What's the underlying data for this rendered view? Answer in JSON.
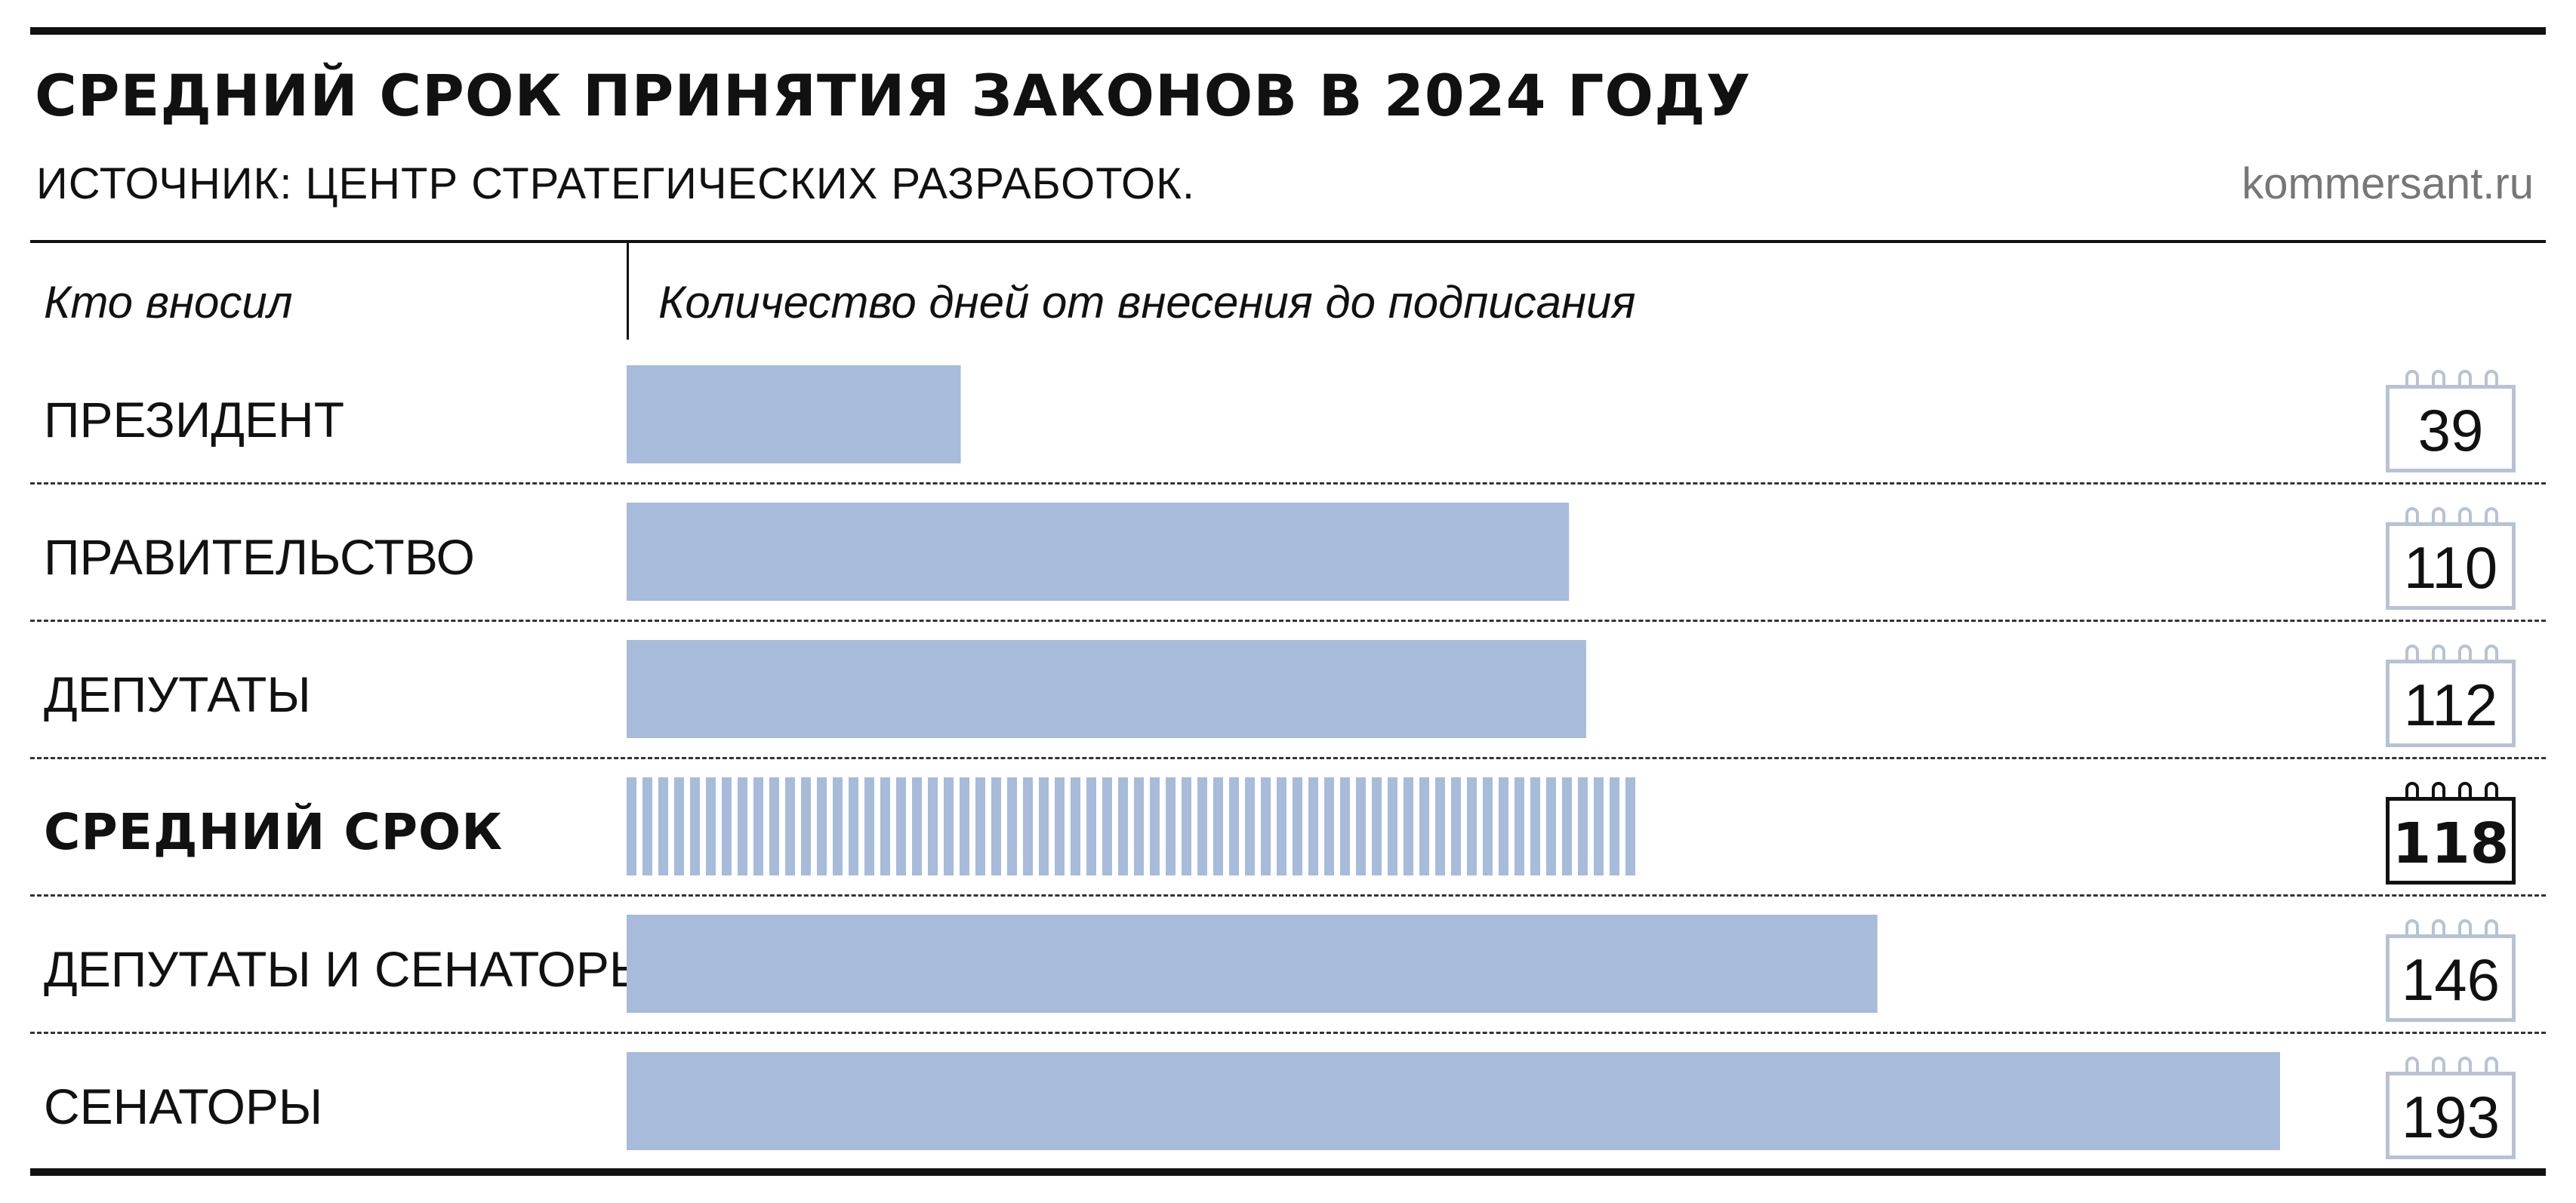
{
  "header": {
    "title": "СРЕДНИЙ СРОК ПРИНЯТИЯ ЗАКОНОВ В 2024 ГОДУ",
    "source": "ИСТОЧНИК: ЦЕНТР СТРАТЕГИЧЕСКИХ РАЗРАБОТОК.",
    "site": "kommersant.ru"
  },
  "columns": {
    "who": "Кто вносил",
    "days": "Количество дней от внесения до подписания"
  },
  "colors": {
    "bar": "#a7bbda",
    "text": "#111111",
    "calendar_border": "#b7c3d3"
  },
  "chart_data": {
    "type": "bar",
    "orientation": "horizontal",
    "title": "СРЕДНИЙ СРОК ПРИНЯТИЯ ЗАКОНОВ В 2024 ГОДУ",
    "xlabel": "Количество дней от внесения до подписания",
    "ylabel": "Кто вносил",
    "categories": [
      "ПРЕЗИДЕНТ",
      "ПРАВИТЕЛЬСТВО",
      "ДЕПУТАТЫ",
      "СРЕДНИЙ СРОК",
      "ДЕПУТАТЫ И СЕНАТОРЫ",
      "СЕНАТОРЫ"
    ],
    "values": [
      39,
      110,
      112,
      118,
      146,
      193
    ],
    "highlight": [
      false,
      false,
      false,
      true,
      false,
      false
    ],
    "xlim": [
      0,
      193
    ],
    "grid": false,
    "legend": "none"
  }
}
